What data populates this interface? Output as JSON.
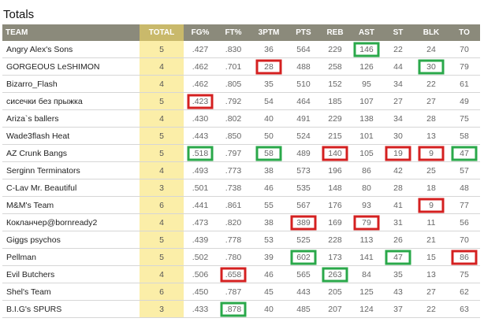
{
  "title": "Totals",
  "colors": {
    "header_bg": "#8b8a7b",
    "total_col_bg": "#fbeea8",
    "red_mark": "#d42020",
    "green_mark": "#2aa84a"
  },
  "columns": [
    "TEAM",
    "TOTAL",
    "FG%",
    "FT%",
    "3PTM",
    "PTS",
    "REB",
    "AST",
    "ST",
    "BLK",
    "TO"
  ],
  "rows": [
    {
      "team": "Angry Alex's Sons",
      "values": [
        "5",
        ".427",
        ".830",
        "36",
        "564",
        "229",
        "146",
        "22",
        "24",
        "70"
      ],
      "marks": {
        "6": "green"
      }
    },
    {
      "team": "GORGEOUS LeSHIMON",
      "values": [
        "4",
        ".462",
        ".701",
        "28",
        "488",
        "258",
        "126",
        "44",
        "30",
        "79"
      ],
      "marks": {
        "3": "red",
        "8": "green"
      }
    },
    {
      "team": "Bizarro_Flash",
      "values": [
        "4",
        ".462",
        ".805",
        "35",
        "510",
        "152",
        "95",
        "34",
        "22",
        "61"
      ],
      "marks": {}
    },
    {
      "team": "сисечки без прыжка",
      "values": [
        "5",
        ".423",
        ".792",
        "54",
        "464",
        "185",
        "107",
        "27",
        "27",
        "49"
      ],
      "marks": {
        "1": "red"
      }
    },
    {
      "team": "Ariza`s ballers",
      "values": [
        "4",
        ".430",
        ".802",
        "40",
        "491",
        "229",
        "138",
        "34",
        "28",
        "75"
      ],
      "marks": {}
    },
    {
      "team": "Wade3flash Heat",
      "values": [
        "5",
        ".443",
        ".850",
        "50",
        "524",
        "215",
        "101",
        "30",
        "13",
        "58"
      ],
      "marks": {}
    },
    {
      "team": "AZ Crunk Bangs",
      "values": [
        "5",
        ".518",
        ".797",
        "58",
        "489",
        "140",
        "105",
        "19",
        "9",
        "47"
      ],
      "marks": {
        "1": "green",
        "3": "green",
        "5": "red",
        "7": "red",
        "8": "red",
        "9": "green"
      }
    },
    {
      "team": "Serginn Terminators",
      "values": [
        "4",
        ".493",
        ".773",
        "38",
        "573",
        "196",
        "86",
        "42",
        "25",
        "57"
      ],
      "marks": {}
    },
    {
      "team": "C-Lav Mr. Beautiful",
      "values": [
        "3",
        ".501",
        ".738",
        "46",
        "535",
        "148",
        "80",
        "28",
        "18",
        "48"
      ],
      "marks": {}
    },
    {
      "team": "M&M's Team",
      "values": [
        "6",
        ".441",
        ".861",
        "55",
        "567",
        "176",
        "93",
        "41",
        "9",
        "77"
      ],
      "marks": {
        "8": "red"
      }
    },
    {
      "team": "Кокланчер@bornready2",
      "values": [
        "4",
        ".473",
        ".820",
        "38",
        "389",
        "169",
        "79",
        "31",
        "11",
        "56"
      ],
      "marks": {
        "4": "red",
        "6": "red"
      }
    },
    {
      "team": "Giggs psychos",
      "values": [
        "5",
        ".439",
        ".778",
        "53",
        "525",
        "228",
        "113",
        "26",
        "21",
        "70"
      ],
      "marks": {}
    },
    {
      "team": "Pellman",
      "values": [
        "5",
        ".502",
        ".780",
        "39",
        "602",
        "173",
        "141",
        "47",
        "15",
        "86"
      ],
      "marks": {
        "4": "green",
        "7": "green",
        "9": "red"
      }
    },
    {
      "team": "Evil Butchers",
      "values": [
        "4",
        ".506",
        ".658",
        "46",
        "565",
        "263",
        "84",
        "35",
        "13",
        "75"
      ],
      "marks": {
        "2": "red",
        "5": "green"
      }
    },
    {
      "team": "Shel's Team",
      "values": [
        "6",
        ".450",
        ".787",
        "45",
        "443",
        "205",
        "125",
        "43",
        "27",
        "62"
      ],
      "marks": {}
    },
    {
      "team": "B.I.G's SPURS",
      "values": [
        "3",
        ".433",
        ".878",
        "40",
        "485",
        "207",
        "124",
        "37",
        "22",
        "63"
      ],
      "marks": {
        "2": "green"
      }
    }
  ]
}
